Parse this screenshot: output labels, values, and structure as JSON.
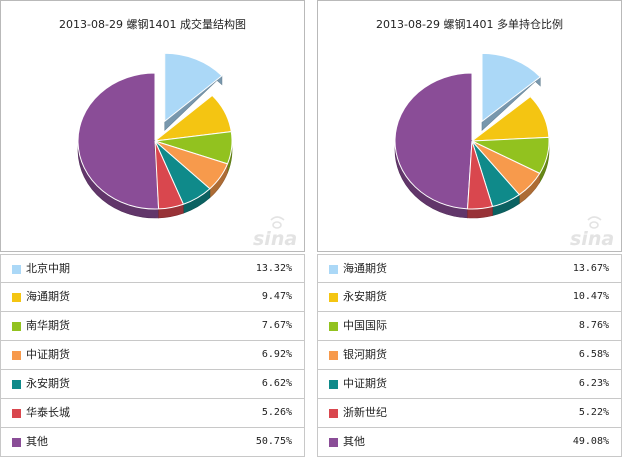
{
  "charts": [
    {
      "title": "2013-08-29 螺钢1401 成交量结构图",
      "rows": [
        {
          "name": "北京中期",
          "pct": "13.32%"
        },
        {
          "name": "海通期货",
          "pct": "9.47%"
        },
        {
          "name": "南华期货",
          "pct": "7.67%"
        },
        {
          "name": "中证期货",
          "pct": "6.92%"
        },
        {
          "name": "永安期货",
          "pct": "6.62%"
        },
        {
          "name": "华泰长城",
          "pct": "5.26%"
        },
        {
          "name": "其他",
          "pct": "50.75%"
        }
      ]
    },
    {
      "title": "2013-08-29 螺钢1401 多单持仓比例",
      "rows": [
        {
          "name": "海通期货",
          "pct": "13.67%"
        },
        {
          "name": "永安期货",
          "pct": "10.47%"
        },
        {
          "name": "中国国际",
          "pct": "8.76%"
        },
        {
          "name": "银河期货",
          "pct": "6.58%"
        },
        {
          "name": "中证期货",
          "pct": "6.23%"
        },
        {
          "name": "浙新世纪",
          "pct": "5.22%"
        },
        {
          "name": "其他",
          "pct": "49.08%"
        }
      ]
    }
  ],
  "chart_data": [
    {
      "type": "pie",
      "title": "2013-08-29 螺钢1401 成交量结构图",
      "categories": [
        "北京中期",
        "海通期货",
        "南华期货",
        "中证期货",
        "永安期货",
        "华泰长城",
        "其他"
      ],
      "values": [
        13.32,
        9.47,
        7.67,
        6.92,
        6.62,
        5.26,
        50.75
      ],
      "exploded": "北京中期",
      "style": "3d"
    },
    {
      "type": "pie",
      "title": "2013-08-29 螺钢1401 多单持仓比例",
      "categories": [
        "海通期货",
        "永安期货",
        "中国国际",
        "银河期货",
        "中证期货",
        "浙新世纪",
        "其他"
      ],
      "values": [
        13.67,
        10.47,
        8.76,
        6.58,
        6.23,
        5.22,
        49.08
      ],
      "exploded": "海通期货",
      "style": "3d"
    }
  ],
  "colors": [
    "#abd8f7",
    "#f4c512",
    "#92c21f",
    "#f79a4c",
    "#0f8a8a",
    "#d9474e",
    "#8a4d97"
  ],
  "watermark": "sina"
}
